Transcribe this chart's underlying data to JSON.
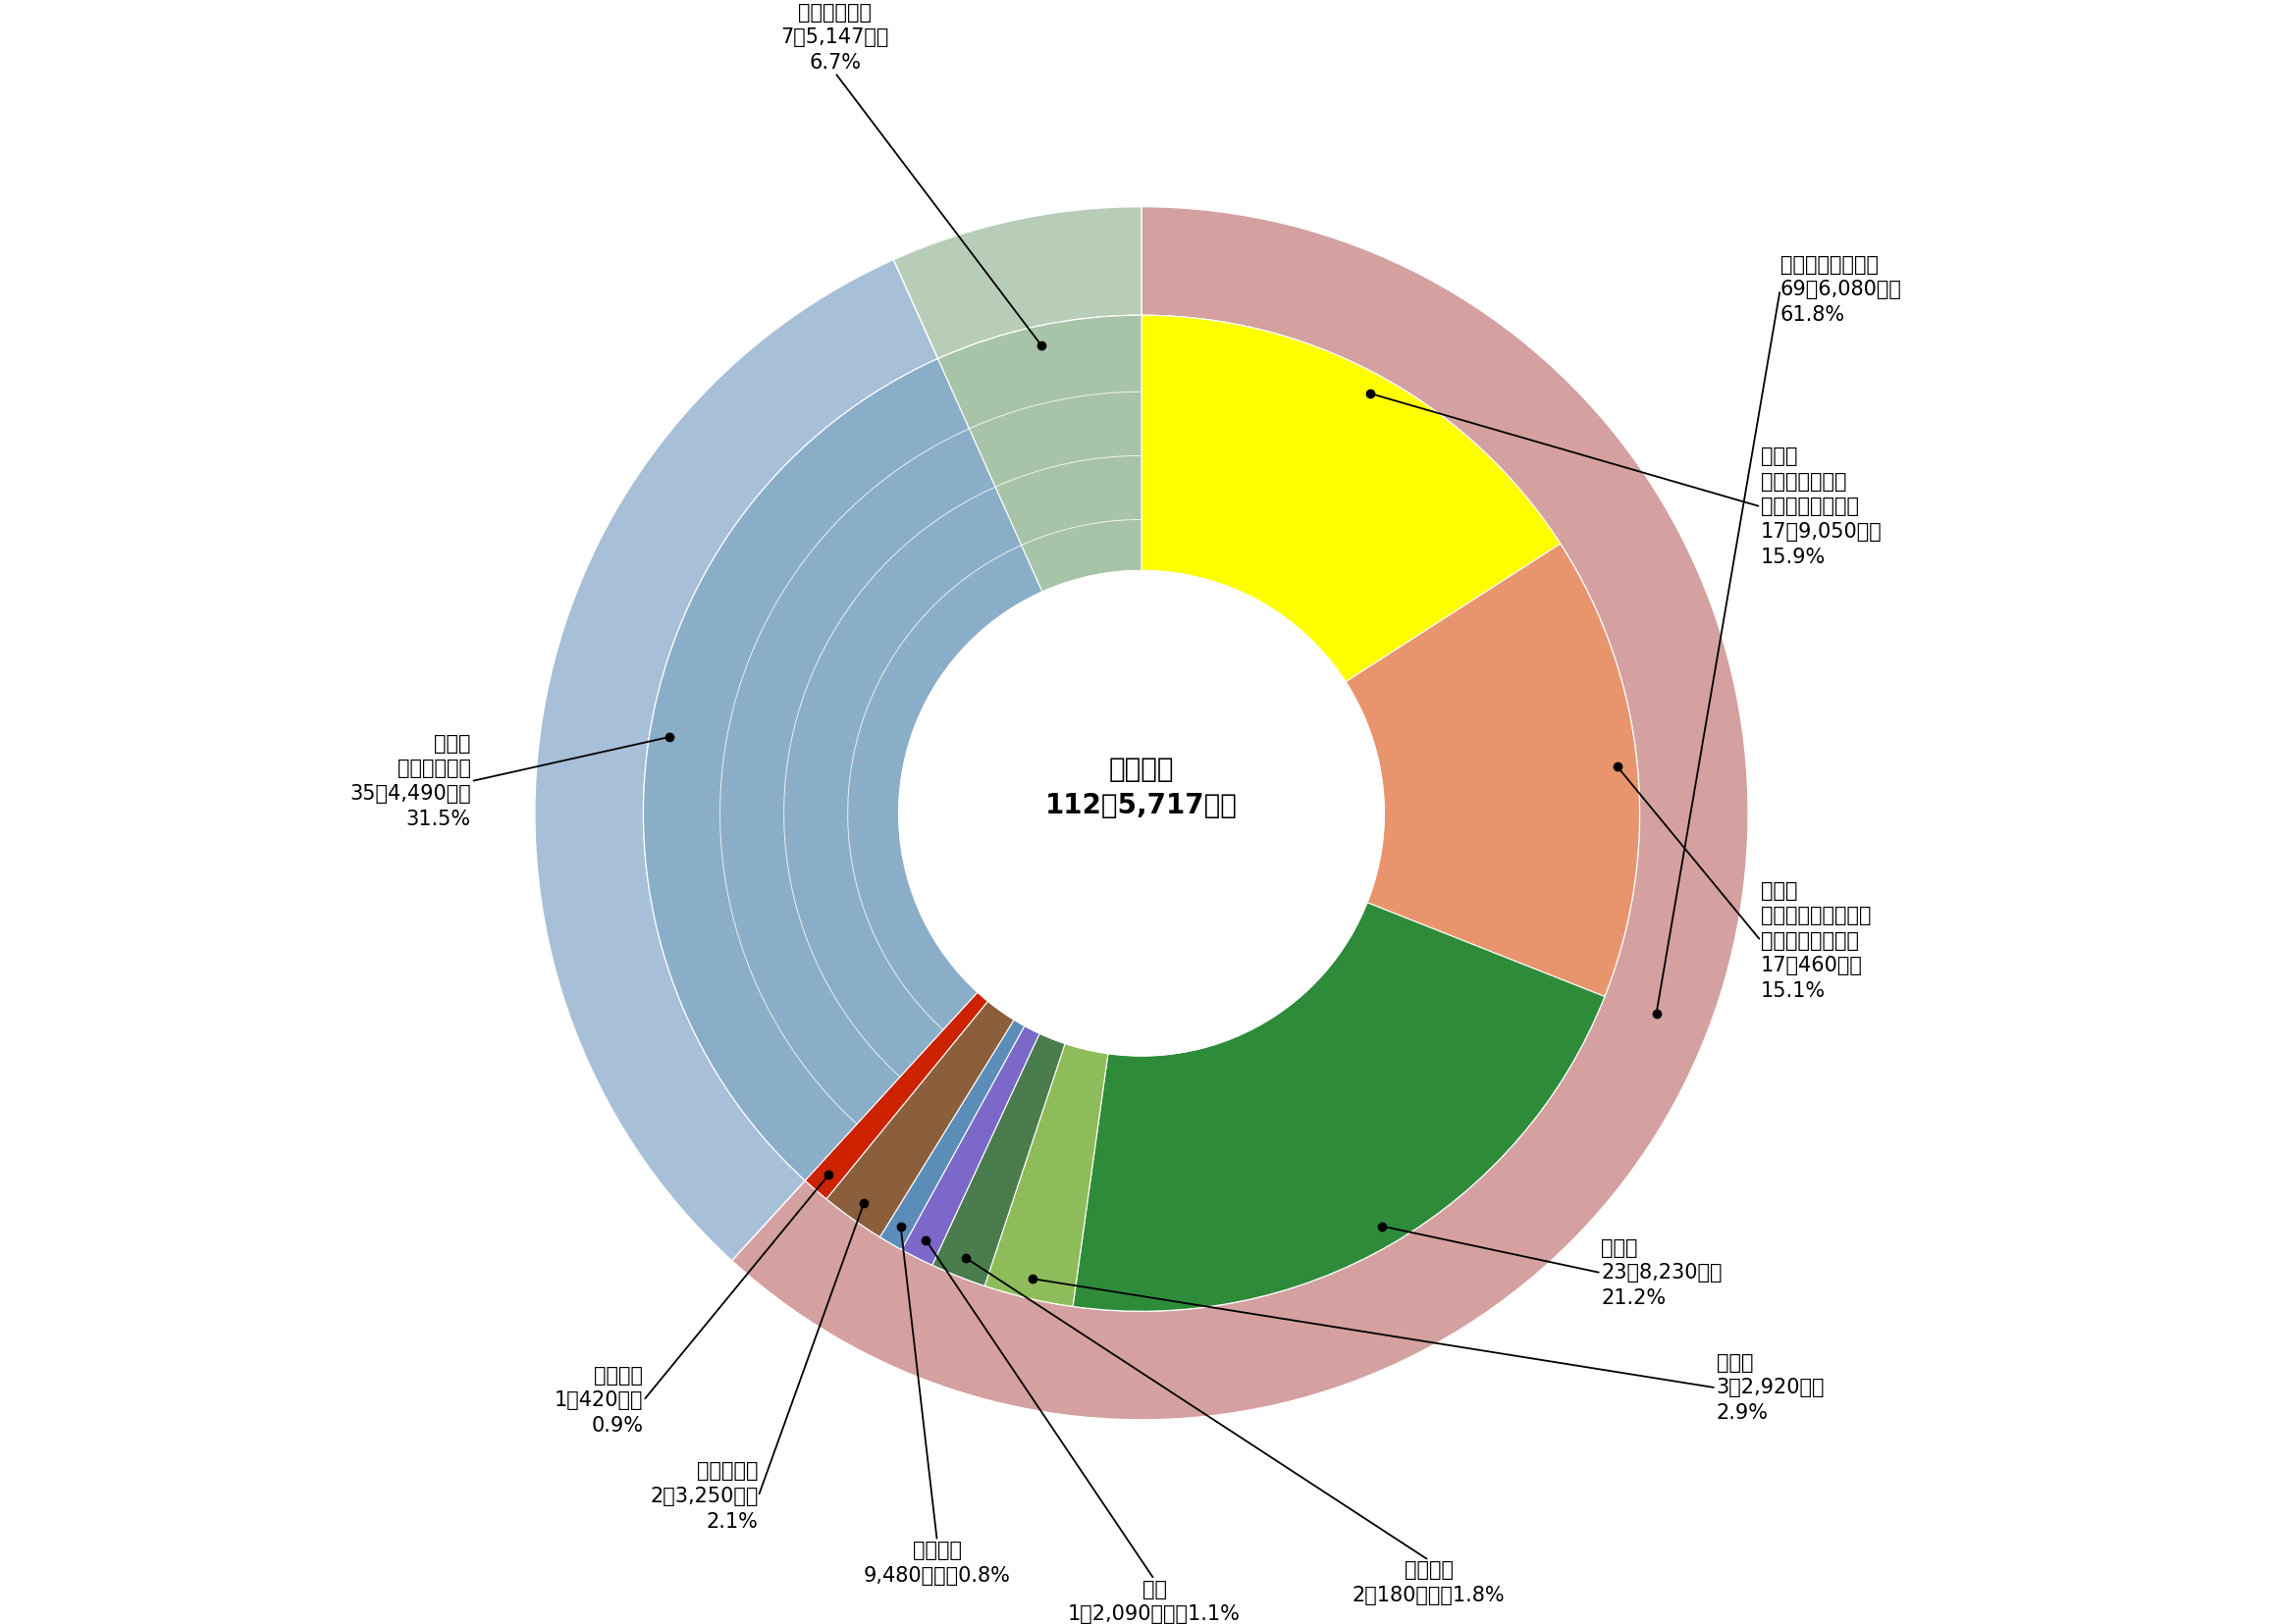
{
  "center_label": "歳入総額\n112兆5,717億円",
  "segments": [
    {
      "name": "所得税",
      "label_inner": "所得税\n（個人の所得に\n対してかかる税）\n17兆9,050億円\n15.9%",
      "value": 15.9,
      "color": "#ffff00"
    },
    {
      "name": "法人税",
      "label_inner": "法人税\n（会社などの所得に\n対してかかる税）\n17兆460億円\n15.1%",
      "value": 15.1,
      "color": "#e8956d"
    },
    {
      "name": "消費税",
      "label_inner": "消費税\n23兆8,230億円\n21.2%",
      "value": 21.2,
      "color": "#2e8b3a"
    },
    {
      "name": "相続税",
      "label_inner": "相続税\n3兆2,920億円\n2.9%",
      "value": 2.9,
      "color": "#8fbc5a"
    },
    {
      "name": "揮発油税",
      "label_inner": "揮発油税\n2兆180億円　1.8%",
      "value": 1.8,
      "color": "#4a7c4e"
    },
    {
      "name": "酒税",
      "label_inner": "酒税\n1兆2,090億円　1.1%",
      "value": 1.1,
      "color": "#7b68c8"
    },
    {
      "name": "たばこ税",
      "label_inner": "たばこ税\n9,480億円　0.8%",
      "value": 0.8,
      "color": "#5b8db8"
    },
    {
      "name": "その他の税",
      "label_inner": "その他の税\n2兆3,250億円\n2.1%",
      "value": 2.1,
      "color": "#8b5e3c"
    },
    {
      "name": "印紙収入",
      "label_inner": "印紙収入\n1兆420億円\n0.9%",
      "value": 0.9,
      "color": "#cc2200"
    },
    {
      "name": "公債金",
      "label_inner": "公債金\n（国の借金）\n35兆4,490億円\n31.5%",
      "value": 31.5,
      "color": "#8aaec8"
    },
    {
      "name": "その他の収入",
      "label_inner": "その他の収入\n7兆5,147億円\n6.7%",
      "value": 6.7,
      "color": "#a8c4a8"
    }
  ],
  "outer_segments": [
    {
      "value": 61.8,
      "color": "#d4a0a0"
    },
    {
      "value": 31.5,
      "color": "#a8bfd8"
    },
    {
      "value": 6.7,
      "color": "#b8cdb8"
    }
  ],
  "outer_label": "租税及び印紙収入\n69兆6,080億円\n61.8%",
  "background_color": "#ffffff",
  "inner_r": 0.38,
  "mid_r": 0.78,
  "outer_r": 0.95
}
